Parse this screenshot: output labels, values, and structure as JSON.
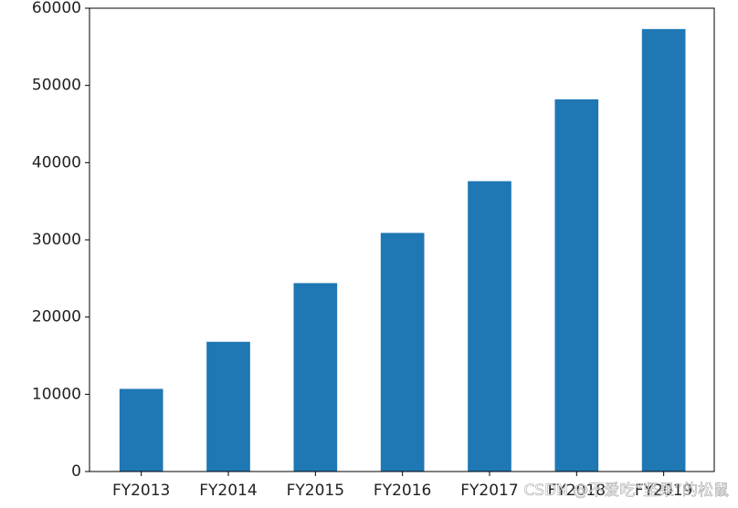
{
  "chart_data": {
    "type": "bar",
    "categories": [
      "FY2013",
      "FY2014",
      "FY2015",
      "FY2016",
      "FY2017",
      "FY2018",
      "FY2019"
    ],
    "values": [
      10700,
      16800,
      24400,
      30900,
      37600,
      48200,
      57300
    ],
    "color": "#1f77b4",
    "ylim": [
      0,
      60000
    ],
    "yticks": [
      0,
      10000,
      20000,
      30000,
      40000,
      50000,
      60000
    ],
    "grid": false
  },
  "watermark": "CSDN @不爱吃“坚果”的松鼠"
}
